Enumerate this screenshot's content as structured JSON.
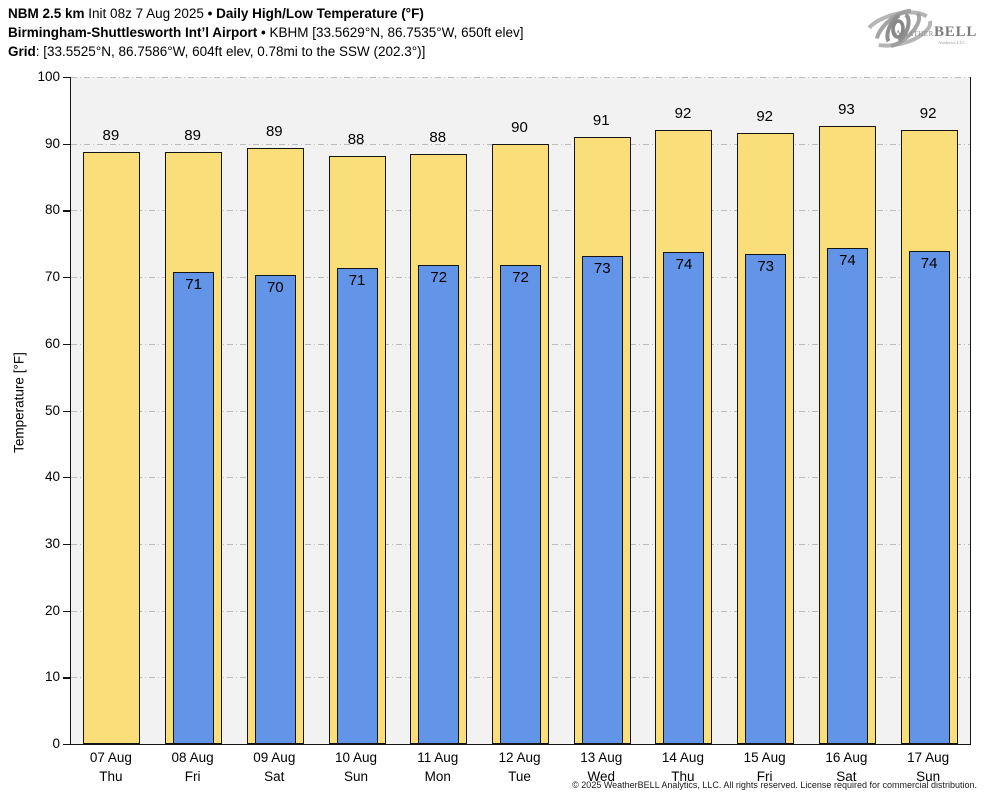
{
  "header": {
    "line1": {
      "model": "NBM 2.5 km",
      "init": "Init 08z 7 Aug 2025",
      "sep": "•",
      "product": "Daily High/Low Temperature (°F)"
    },
    "line2": {
      "station": "Birmingham-Shuttlesworth Int’l Airport",
      "sep": "•",
      "details": "KBHM [33.5629°N, 86.7535°W, 650ft elev]"
    },
    "line3": {
      "label": "Grid",
      "details": ": [33.5525°N, 86.7586°W, 604ft elev, 0.78mi to the SSW (202.3°)]"
    }
  },
  "logo": {
    "weather": "Weather",
    "bell": "BELL",
    "sub": "Analytics LLC"
  },
  "chart_data": {
    "type": "bar",
    "title": "Daily High/Low Temperature (°F)",
    "xlabel": "",
    "ylabel": "Temperature [°F]",
    "ylim": [
      0,
      100
    ],
    "yticks": [
      0,
      10,
      20,
      30,
      40,
      50,
      60,
      70,
      80,
      90,
      100
    ],
    "grid": "dash-dot horizontal",
    "legend": "none",
    "categories": [
      "07 Aug",
      "08 Aug",
      "09 Aug",
      "10 Aug",
      "11 Aug",
      "12 Aug",
      "13 Aug",
      "14 Aug",
      "15 Aug",
      "16 Aug",
      "17 Aug"
    ],
    "weekdays": [
      "Thu",
      "Fri",
      "Sat",
      "Sun",
      "Mon",
      "Tue",
      "Wed",
      "Thu",
      "Fri",
      "Sat",
      "Sun"
    ],
    "series": [
      {
        "name": "High",
        "color": "#FADE79",
        "labels": [
          89,
          89,
          89,
          88,
          88,
          90,
          91,
          92,
          92,
          93,
          92
        ],
        "values": [
          88.8,
          88.8,
          89.4,
          88.1,
          88.4,
          89.9,
          91.0,
          92.0,
          91.6,
          92.7,
          92.0
        ]
      },
      {
        "name": "Low",
        "color": "#6294E8",
        "labels": [
          null,
          71,
          70,
          71,
          72,
          72,
          73,
          74,
          73,
          74,
          74
        ],
        "values": [
          null,
          70.7,
          70.3,
          71.3,
          71.8,
          71.8,
          73.2,
          73.7,
          73.4,
          74.4,
          73.9
        ]
      }
    ],
    "colors": {
      "plot_bg": "#F2F2F2",
      "grid": "#BCBCBC",
      "bar_border": "#141414"
    }
  },
  "footer": {
    "copyright": "© 2025 WeatherBELL Analytics, LLC. All rights reserved. License required for commercial distribution."
  }
}
